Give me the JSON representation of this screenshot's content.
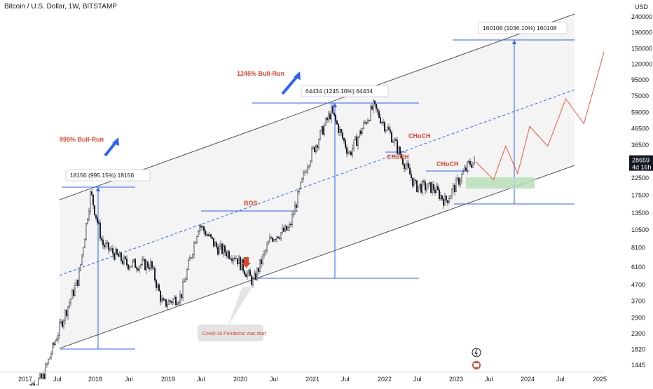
{
  "header": {
    "title": "Bitcoin / U.S. Dollar, 1W, BITSTAMP"
  },
  "axis": {
    "currency": "USD",
    "y_ticks": [
      "240000",
      "190000",
      "150000",
      "120000",
      "95000",
      "75000",
      "59000",
      "46500",
      "36500",
      "22500",
      "17500",
      "13500",
      "10500",
      "8100",
      "6100",
      "4700",
      "3700",
      "2900",
      "2300",
      "1820",
      "1445"
    ],
    "x_ticks": [
      "2017",
      "Jul",
      "2018",
      "Jul",
      "2019",
      "Jul",
      "2020",
      "Jul",
      "2021",
      "Jul",
      "2022",
      "Jul",
      "2023",
      "Jul",
      "2024",
      "Jul",
      "2025"
    ]
  },
  "price_tag": {
    "price": "28659",
    "timer": "4d 16h",
    "bg_color": "#131722"
  },
  "annotations": {
    "bull_run_1": "995% Bull-Run",
    "bull_run_2": "1245% Bull-Run",
    "measure_1": "18156 (995.15%) 18156",
    "measure_2": "64434 (1245.10%) 64434",
    "measure_3": "160108 (1036.10%) 160108",
    "bos": "BOS",
    "choch_1": "CHoCH",
    "choch_2": "CHoCH",
    "choch_3": "CHoCH",
    "covid": "Covid-19 Pandemic was start"
  },
  "colors": {
    "accent_red": "#e0452b",
    "accent_blue": "#2962ff",
    "channel_line": "#555555",
    "projection": "#e8593c",
    "demand_zone": "#b7dfb9"
  },
  "icons": [
    "lightning-icon",
    "us-flag-icon"
  ],
  "chart_data": {
    "type": "candlestick",
    "title": "Bitcoin / U.S. Dollar, 1W, BITSTAMP",
    "xlabel": "",
    "ylabel": "USD",
    "scale": "log",
    "xlim": [
      "2016-10",
      "2025-06"
    ],
    "ylim": [
      1300,
      270000
    ],
    "grid": false,
    "series": [
      {
        "name": "price",
        "x": [
          "2017-01",
          "2017-04",
          "2017-07",
          "2017-10",
          "2017-12",
          "2018-02",
          "2018-06",
          "2018-10",
          "2018-12",
          "2019-03",
          "2019-06",
          "2019-09",
          "2019-12",
          "2020-03",
          "2020-06",
          "2020-09",
          "2020-12",
          "2021-04",
          "2021-07",
          "2021-11",
          "2022-02",
          "2022-06",
          "2022-09",
          "2022-11",
          "2023-03",
          "2023-04"
        ],
        "y": [
          1000,
          1200,
          2600,
          5200,
          18156,
          8500,
          6400,
          6300,
          3500,
          4000,
          11500,
          8100,
          7200,
          4900,
          9400,
          10700,
          28000,
          60000,
          32000,
          64434,
          42000,
          20000,
          19500,
          16000,
          28000,
          28659
        ]
      },
      {
        "name": "projection",
        "x": [
          "2023-04",
          "2023-07",
          "2023-09",
          "2023-11",
          "2024-01",
          "2024-04",
          "2024-07",
          "2024-10",
          "2025-03"
        ],
        "y": [
          28659,
          22000,
          36000,
          24000,
          48000,
          36000,
          72000,
          50000,
          240000
        ]
      }
    ],
    "channel": {
      "upper_line": true,
      "lower_line": true,
      "mid_line": "dashed"
    },
    "horizontal_levels": [
      18156,
      64434,
      160108,
      13500,
      5200,
      1820,
      12500,
      24500,
      32000
    ]
  }
}
